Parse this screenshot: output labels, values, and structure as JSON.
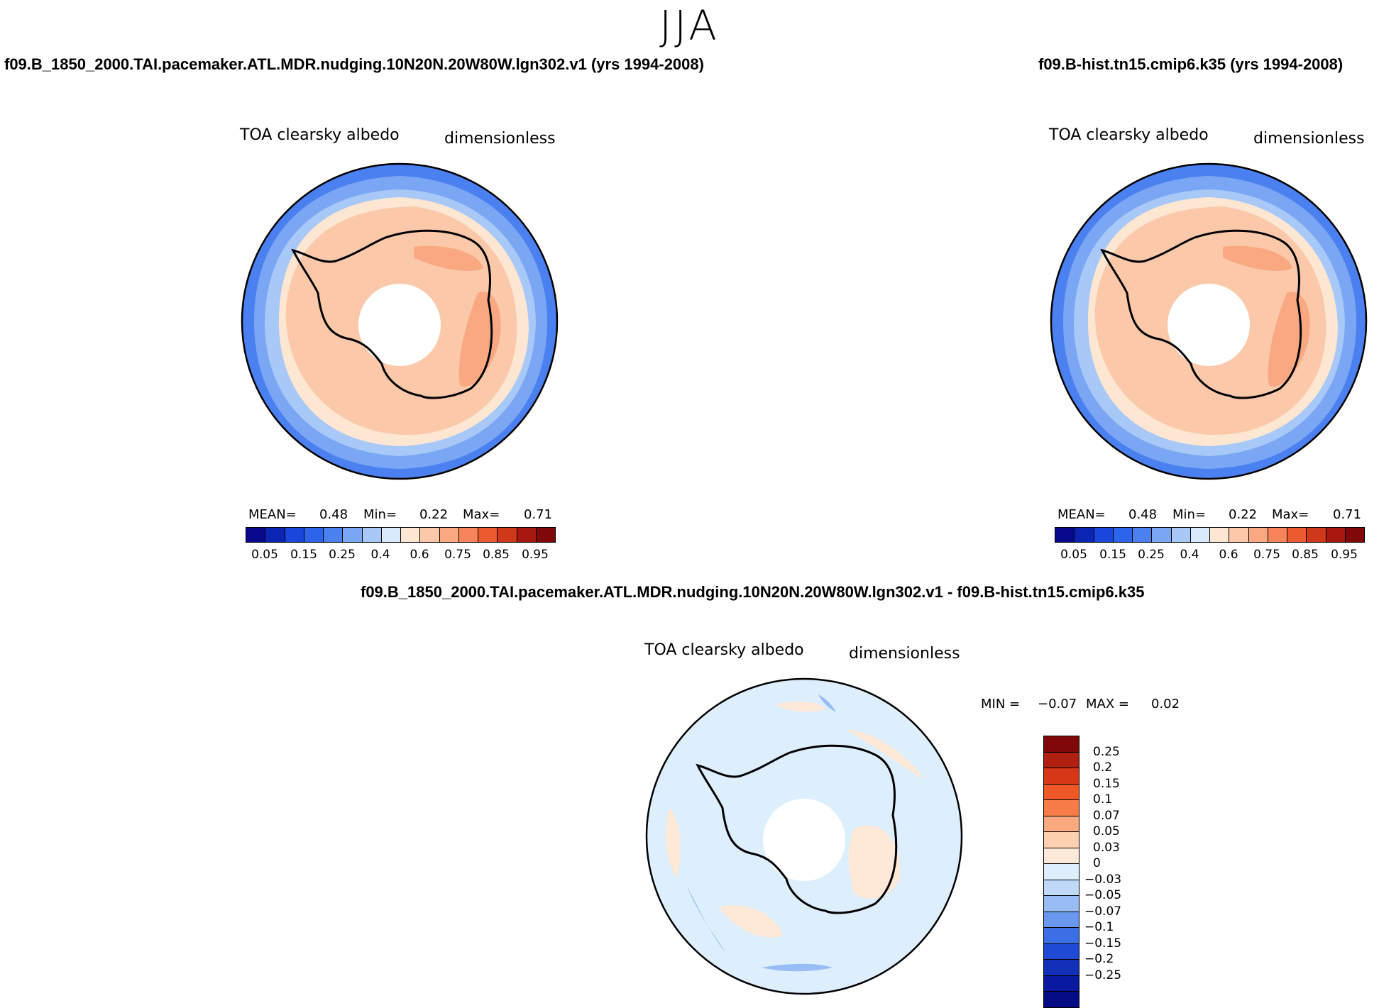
{
  "figure": {
    "season": "JJA"
  },
  "panel_left": {
    "run_title": "f09.B_1850_2000.TAI.pacemaker.ATL.MDR.nudging.10N20N.20W80W.lgn302.v1 (yrs 1994-2008)",
    "variable": "TOA clearsky albedo",
    "units": "dimensionless",
    "mean_label": "MEAN=",
    "mean_value": "0.48",
    "min_label": "Min=",
    "min_value": "0.22",
    "max_label": "Max=",
    "max_value": "0.71",
    "colorbar_ticks": [
      "0.05",
      "0.15",
      "0.25",
      "0.4",
      "0.6",
      "0.75",
      "0.85",
      "0.95"
    ]
  },
  "panel_right": {
    "run_title": "f09.B-hist.tn15.cmip6.k35 (yrs 1994-2008)",
    "variable": "TOA clearsky albedo",
    "units": "dimensionless",
    "mean_label": "MEAN=",
    "mean_value": "0.48",
    "min_label": "Min=",
    "min_value": "0.22",
    "max_label": "Max=",
    "max_value": "0.71",
    "colorbar_ticks": [
      "0.05",
      "0.15",
      "0.25",
      "0.4",
      "0.6",
      "0.75",
      "0.85",
      "0.95"
    ]
  },
  "panel_diff": {
    "run_title": "f09.B_1850_2000.TAI.pacemaker.ATL.MDR.nudging.10N20N.20W80W.lgn302.v1 - f09.B-hist.tn15.cmip6.k35",
    "variable": "TOA clearsky albedo",
    "units": "dimensionless",
    "min_label": "MIN =",
    "min_value": "−0.07",
    "max_label": "MAX =",
    "max_value": "0.02",
    "colorbar_ticks": [
      "0.25",
      "0.2",
      "0.15",
      "0.1",
      "0.07",
      "0.05",
      "0.03",
      "0",
      "−0.03",
      "−0.05",
      "−0.07",
      "−0.1",
      "−0.15",
      "−0.2",
      "−0.25"
    ]
  },
  "colors": {
    "abs_scale": [
      "#08088c",
      "#0c24b4",
      "#1a46dc",
      "#2d64ec",
      "#4a80f0",
      "#7aa6f4",
      "#a8c8f8",
      "#d8eafc",
      "#fde6d2",
      "#fbc8aa",
      "#f9a882",
      "#f8845a",
      "#ee5a30",
      "#d0381a",
      "#a81810",
      "#800808"
    ],
    "diff_scale": [
      "#800808",
      "#b02010",
      "#d83818",
      "#f05828",
      "#f87c48",
      "#fbaa80",
      "#fdd0b0",
      "#fee8d8",
      "#ddeefd",
      "#c0d8f8",
      "#98bcf4",
      "#6a98ee",
      "#3c6ee6",
      "#1e4ad6",
      "#1230b8",
      "#0a1aa0",
      "#040c84"
    ],
    "ocean_outer": "#4a80f0",
    "ocean_mid": "#7aa6f4",
    "ocean_inner": "#a8c8f8",
    "transition": "#fde6d2",
    "ice": "#fbc8aa",
    "ice_high": "#f9a882",
    "diff_background": "#ddeefd",
    "diff_positive": "#fee8d8",
    "diff_negative": "#98bcf4"
  }
}
